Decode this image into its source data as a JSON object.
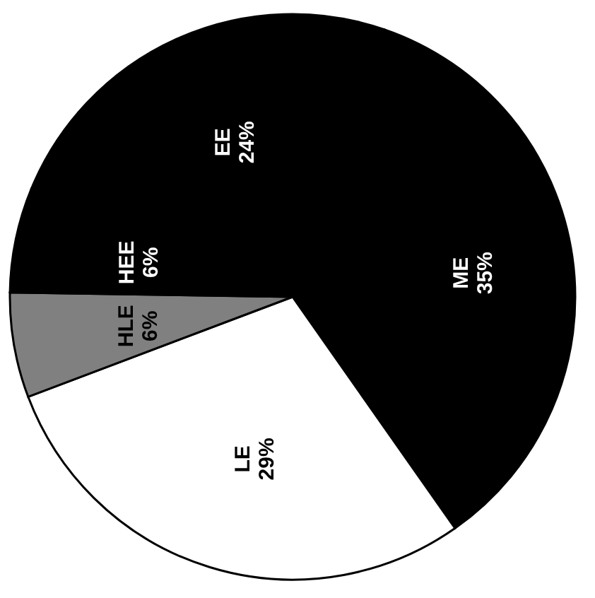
{
  "chart_data": {
    "type": "pie",
    "categories": [
      "ME",
      "LE",
      "HLE",
      "HEE",
      "EE"
    ],
    "values": [
      35,
      29,
      6,
      6,
      24
    ],
    "colors": [
      "#000000",
      "#ffffff",
      "#808080",
      "#000000",
      "#000000"
    ],
    "value_labels": [
      "35%",
      "29%",
      "6%",
      "6%",
      "24%"
    ]
  }
}
